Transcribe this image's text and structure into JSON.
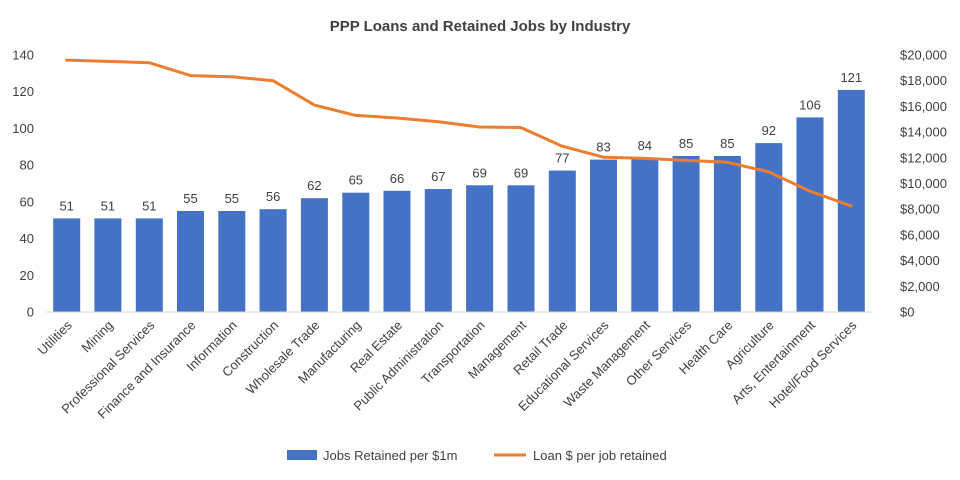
{
  "chart_data": {
    "type": "bar",
    "title": "PPP Loans and Retained Jobs by Industry",
    "categories": [
      "Utilities",
      "Mining",
      "Professional Services",
      "Finance and Insurance",
      "Information",
      "Construction",
      "Wholesale Trade",
      "Manufacturing",
      "Real Estate",
      "Public Administration",
      "Transportation",
      "Management",
      "Retail Trade",
      "Educational Services",
      "Waste Management",
      "Other Services",
      "Health Care",
      "Agriculture",
      "Arts, Entertainment",
      "Hotel/Food Services"
    ],
    "series": [
      {
        "name": "Jobs Retained per $1m",
        "type": "bar",
        "axis": "left",
        "color": "#4472C4",
        "values": [
          51,
          51,
          51,
          55,
          55,
          56,
          62,
          65,
          66,
          67,
          69,
          69,
          77,
          83,
          84,
          85,
          85,
          92,
          106,
          121
        ],
        "data_labels": [
          "51",
          "51",
          "51",
          "55",
          "55",
          "56",
          "62",
          "65",
          "66",
          "67",
          "69",
          "69",
          "77",
          "83",
          "84",
          "85",
          "85",
          "92",
          "106",
          "121"
        ]
      },
      {
        "name": "Loan $ per job retained",
        "type": "line",
        "axis": "right",
        "color": "#ED7D31",
        "values": [
          19600,
          19500,
          19400,
          18400,
          18300,
          18000,
          16100,
          15300,
          15100,
          14800,
          14400,
          14350,
          12900,
          12050,
          11950,
          11800,
          11650,
          10900,
          9400,
          8250
        ]
      }
    ],
    "y_left": {
      "ylim": [
        0,
        140
      ],
      "ticks": [
        0,
        20,
        40,
        60,
        80,
        100,
        120,
        140
      ],
      "tick_labels": [
        "0",
        "20",
        "40",
        "60",
        "80",
        "100",
        "120",
        "140"
      ]
    },
    "y_right": {
      "ylim": [
        0,
        20000
      ],
      "ticks": [
        0,
        2000,
        4000,
        6000,
        8000,
        10000,
        12000,
        14000,
        16000,
        18000,
        20000
      ],
      "tick_labels": [
        "$0",
        "$2,000",
        "$4,000",
        "$6,000",
        "$8,000",
        "$10,000",
        "$12,000",
        "$14,000",
        "$16,000",
        "$18,000",
        "$20,000"
      ]
    },
    "grid": false,
    "legend_position": "bottom"
  }
}
